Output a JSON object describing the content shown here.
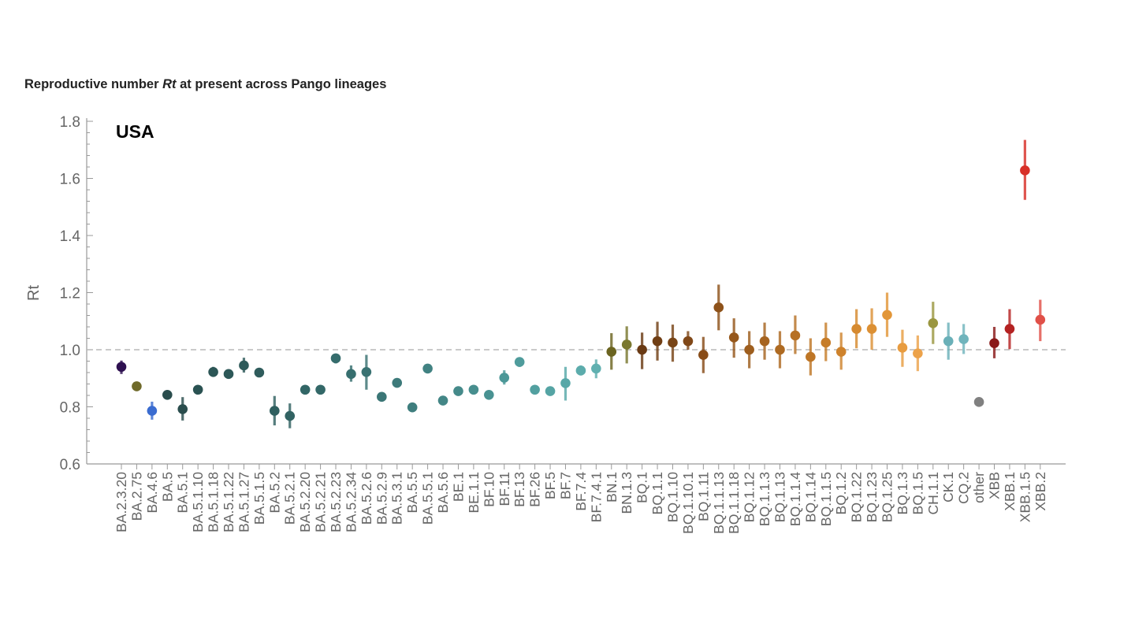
{
  "chart_data": {
    "type": "scatter",
    "title": {
      "prefix": "Reproductive number ",
      "emph": "Rt",
      "suffix": " at present across Pango lineages"
    },
    "panel_label": "USA",
    "ylabel": "Rt",
    "xlabel": "",
    "ylim": [
      0.6,
      1.8
    ],
    "yticks": [
      "0.6",
      "0.8",
      "1.0",
      "1.2",
      "1.4",
      "1.6",
      "1.8"
    ],
    "reference_line": 1.0,
    "grid": false,
    "categories": [
      "BA.2.3.20",
      "BA.2.75",
      "BA.4.6",
      "BA.5",
      "BA.5.1",
      "BA.5.1.10",
      "BA.5.1.18",
      "BA.5.1.22",
      "BA.5.1.27",
      "BA.5.1.5",
      "BA.5.2",
      "BA.5.2.1",
      "BA.5.2.20",
      "BA.5.2.21",
      "BA.5.2.23",
      "BA.5.2.34",
      "BA.5.2.6",
      "BA.5.2.9",
      "BA.5.3.1",
      "BA.5.5",
      "BA.5.5.1",
      "BA.5.6",
      "BE.1",
      "BE.1.1",
      "BF.10",
      "BF.11",
      "BF.13",
      "BF.26",
      "BF.5",
      "BF.7",
      "BF.7.4",
      "BF.7.4.1",
      "BN.1",
      "BN.1.3",
      "BQ.1",
      "BQ.1.1",
      "BQ.1.10",
      "BQ.1.10.1",
      "BQ.1.11",
      "BQ.1.1.13",
      "BQ.1.1.18",
      "BQ.1.12",
      "BQ.1.1.3",
      "BQ.1.13",
      "BQ.1.1.4",
      "BQ.1.14",
      "BQ.1.1.5",
      "BQ.1.2",
      "BQ.1.22",
      "BQ.1.23",
      "BQ.1.25",
      "BQ.1.3",
      "BQ.1.5",
      "CH.1.1",
      "CK.1",
      "CQ.2",
      "other",
      "XBB",
      "XBB.1",
      "XBB.1.5",
      "XBB.2"
    ],
    "points": [
      {
        "y": 0.94,
        "lo": 0.915,
        "hi": 0.962,
        "color": "#2e1050"
      },
      {
        "y": 0.872,
        "lo": 0.855,
        "hi": 0.888,
        "color": "#6f6a2a"
      },
      {
        "y": 0.786,
        "lo": 0.755,
        "hi": 0.818,
        "color": "#3a6cd0"
      },
      {
        "y": 0.842,
        "lo": 0.828,
        "hi": 0.856,
        "color": "#2a4d4d"
      },
      {
        "y": 0.792,
        "lo": 0.752,
        "hi": 0.834,
        "color": "#2a4d4d"
      },
      {
        "y": 0.86,
        "lo": 0.848,
        "hi": 0.872,
        "color": "#2a5252"
      },
      {
        "y": 0.922,
        "lo": 0.905,
        "hi": 0.94,
        "color": "#2c5656"
      },
      {
        "y": 0.915,
        "lo": 0.9,
        "hi": 0.93,
        "color": "#2d5858"
      },
      {
        "y": 0.945,
        "lo": 0.92,
        "hi": 0.972,
        "color": "#2e5a5a"
      },
      {
        "y": 0.92,
        "lo": 0.905,
        "hi": 0.935,
        "color": "#2f5c5c"
      },
      {
        "y": 0.786,
        "lo": 0.735,
        "hi": 0.838,
        "color": "#306060"
      },
      {
        "y": 0.768,
        "lo": 0.725,
        "hi": 0.812,
        "color": "#316262"
      },
      {
        "y": 0.86,
        "lo": 0.848,
        "hi": 0.873,
        "color": "#326666"
      },
      {
        "y": 0.86,
        "lo": 0.848,
        "hi": 0.873,
        "color": "#336868"
      },
      {
        "y": 0.97,
        "lo": 0.952,
        "hi": 0.985,
        "color": "#356c6c"
      },
      {
        "y": 0.915,
        "lo": 0.888,
        "hi": 0.945,
        "color": "#376f6f"
      },
      {
        "y": 0.922,
        "lo": 0.86,
        "hi": 0.982,
        "color": "#397272"
      },
      {
        "y": 0.835,
        "lo": 0.822,
        "hi": 0.848,
        "color": "#3b7676"
      },
      {
        "y": 0.884,
        "lo": 0.868,
        "hi": 0.9,
        "color": "#3d7a7a"
      },
      {
        "y": 0.798,
        "lo": 0.788,
        "hi": 0.808,
        "color": "#3f7e7e"
      },
      {
        "y": 0.934,
        "lo": 0.918,
        "hi": 0.95,
        "color": "#418282"
      },
      {
        "y": 0.822,
        "lo": 0.81,
        "hi": 0.834,
        "color": "#438686"
      },
      {
        "y": 0.855,
        "lo": 0.84,
        "hi": 0.87,
        "color": "#458a8a"
      },
      {
        "y": 0.86,
        "lo": 0.845,
        "hi": 0.875,
        "color": "#478e8e"
      },
      {
        "y": 0.842,
        "lo": 0.826,
        "hi": 0.858,
        "color": "#499292"
      },
      {
        "y": 0.902,
        "lo": 0.878,
        "hi": 0.928,
        "color": "#4c9898"
      },
      {
        "y": 0.957,
        "lo": 0.94,
        "hi": 0.972,
        "color": "#4f9c9c"
      },
      {
        "y": 0.86,
        "lo": 0.847,
        "hi": 0.873,
        "color": "#52a0a0"
      },
      {
        "y": 0.855,
        "lo": 0.84,
        "hi": 0.87,
        "color": "#55a4a4"
      },
      {
        "y": 0.883,
        "lo": 0.822,
        "hi": 0.94,
        "color": "#58a8a8"
      },
      {
        "y": 0.927,
        "lo": 0.91,
        "hi": 0.945,
        "color": "#5cacac"
      },
      {
        "y": 0.934,
        "lo": 0.9,
        "hi": 0.966,
        "color": "#60b0b0"
      },
      {
        "y": 0.993,
        "lo": 0.93,
        "hi": 1.058,
        "color": "#6b6420"
      },
      {
        "y": 1.018,
        "lo": 0.952,
        "hi": 1.082,
        "color": "#7a7830"
      },
      {
        "y": 1.0,
        "lo": 0.932,
        "hi": 1.06,
        "color": "#6a3a14"
      },
      {
        "y": 1.03,
        "lo": 0.962,
        "hi": 1.098,
        "color": "#703e14"
      },
      {
        "y": 1.025,
        "lo": 0.958,
        "hi": 1.088,
        "color": "#784416"
      },
      {
        "y": 1.03,
        "lo": 1.0,
        "hi": 1.065,
        "color": "#804818"
      },
      {
        "y": 0.982,
        "lo": 0.918,
        "hi": 1.045,
        "color": "#884c18"
      },
      {
        "y": 1.148,
        "lo": 1.068,
        "hi": 1.228,
        "color": "#8e521a"
      },
      {
        "y": 1.043,
        "lo": 0.972,
        "hi": 1.11,
        "color": "#96581c"
      },
      {
        "y": 1.0,
        "lo": 0.935,
        "hi": 1.065,
        "color": "#9e5e1e"
      },
      {
        "y": 1.03,
        "lo": 0.965,
        "hi": 1.095,
        "color": "#a66420"
      },
      {
        "y": 1.0,
        "lo": 0.935,
        "hi": 1.065,
        "color": "#ae6a22"
      },
      {
        "y": 1.05,
        "lo": 0.985,
        "hi": 1.12,
        "color": "#b67024"
      },
      {
        "y": 0.975,
        "lo": 0.91,
        "hi": 1.04,
        "color": "#be7626"
      },
      {
        "y": 1.025,
        "lo": 0.96,
        "hi": 1.095,
        "color": "#c67c28"
      },
      {
        "y": 0.993,
        "lo": 0.93,
        "hi": 1.06,
        "color": "#ce822c"
      },
      {
        "y": 1.073,
        "lo": 1.005,
        "hi": 1.142,
        "color": "#d68a30"
      },
      {
        "y": 1.073,
        "lo": 1.0,
        "hi": 1.145,
        "color": "#dc9034"
      },
      {
        "y": 1.122,
        "lo": 1.045,
        "hi": 1.2,
        "color": "#e29638"
      },
      {
        "y": 1.007,
        "lo": 0.94,
        "hi": 1.07,
        "color": "#e89c40"
      },
      {
        "y": 0.987,
        "lo": 0.925,
        "hi": 1.05,
        "color": "#eca24a"
      },
      {
        "y": 1.093,
        "lo": 1.02,
        "hi": 1.168,
        "color": "#9a9640"
      },
      {
        "y": 1.03,
        "lo": 0.965,
        "hi": 1.095,
        "color": "#6ab0b8"
      },
      {
        "y": 1.037,
        "lo": 0.985,
        "hi": 1.09,
        "color": "#70b4bc"
      },
      {
        "y": 0.817,
        "lo": 0.817,
        "hi": 0.817,
        "color": "#808080"
      },
      {
        "y": 1.023,
        "lo": 0.97,
        "hi": 1.08,
        "color": "#8a1a1a"
      },
      {
        "y": 1.073,
        "lo": 1.002,
        "hi": 1.142,
        "color": "#b42222"
      },
      {
        "y": 1.628,
        "lo": 1.525,
        "hi": 1.735,
        "color": "#d83028"
      },
      {
        "y": 1.105,
        "lo": 1.03,
        "hi": 1.175,
        "color": "#e05048"
      }
    ]
  }
}
